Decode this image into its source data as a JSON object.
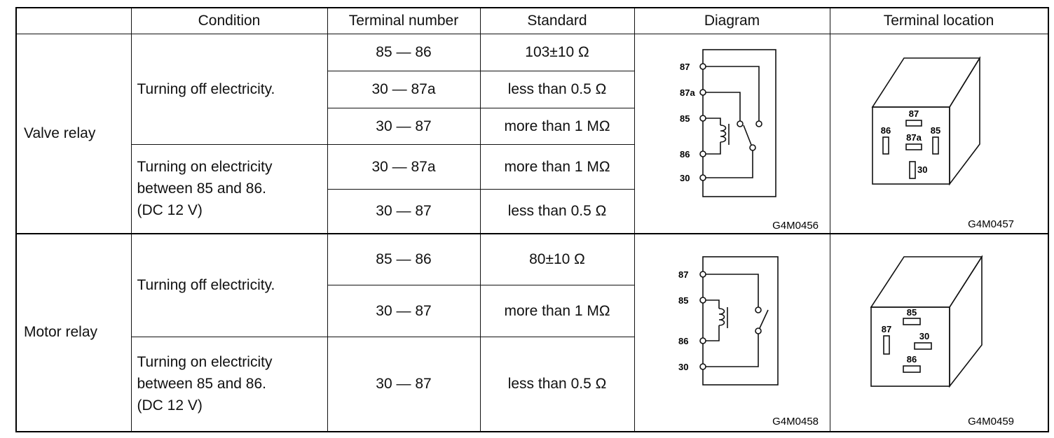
{
  "header": {
    "columns": [
      "Condition",
      "Terminal number",
      "Standard",
      "Diagram",
      "Terminal location"
    ]
  },
  "relays": [
    {
      "name": "Valve relay",
      "conditions": [
        {
          "label": [
            "Turning off electricity."
          ],
          "tests": [
            {
              "terminals": "85 — 86",
              "standard": "103±10 Ω"
            },
            {
              "terminals": "30 — 87a",
              "standard": "less than 0.5 Ω"
            },
            {
              "terminals": "30 — 87",
              "standard": "more than 1 MΩ"
            }
          ]
        },
        {
          "label": [
            "Turning on electricity",
            "between 85 and 86.",
            "(DC 12 V)"
          ],
          "tests": [
            {
              "terminals": "30 — 87a",
              "standard": "more than 1 MΩ"
            },
            {
              "terminals": "30 — 87",
              "standard": "less than 0.5 Ω"
            }
          ]
        }
      ],
      "diagram": {
        "pins": [
          "87",
          "87a",
          "85",
          "86",
          "30"
        ],
        "code": "G4M0456"
      },
      "location": {
        "pins": [
          "87",
          "86",
          "87a",
          "85",
          "30"
        ],
        "code": "G4M0457"
      }
    },
    {
      "name": "Motor relay",
      "conditions": [
        {
          "label": [
            "Turning off electricity."
          ],
          "tests": [
            {
              "terminals": "85 — 86",
              "standard": "80±10 Ω"
            },
            {
              "terminals": "30 — 87",
              "standard": "more than 1 MΩ"
            }
          ]
        },
        {
          "label": [
            "Turning on electricity",
            "between 85 and 86.",
            "(DC 12 V)"
          ],
          "tests": [
            {
              "terminals": "30 — 87",
              "standard": "less than 0.5 Ω"
            }
          ]
        }
      ],
      "diagram": {
        "pins": [
          "87",
          "85",
          "86",
          "30"
        ],
        "code": "G4M0458"
      },
      "location": {
        "pins": [
          "85",
          "87",
          "30",
          "86"
        ],
        "code": "G4M0459"
      }
    }
  ]
}
